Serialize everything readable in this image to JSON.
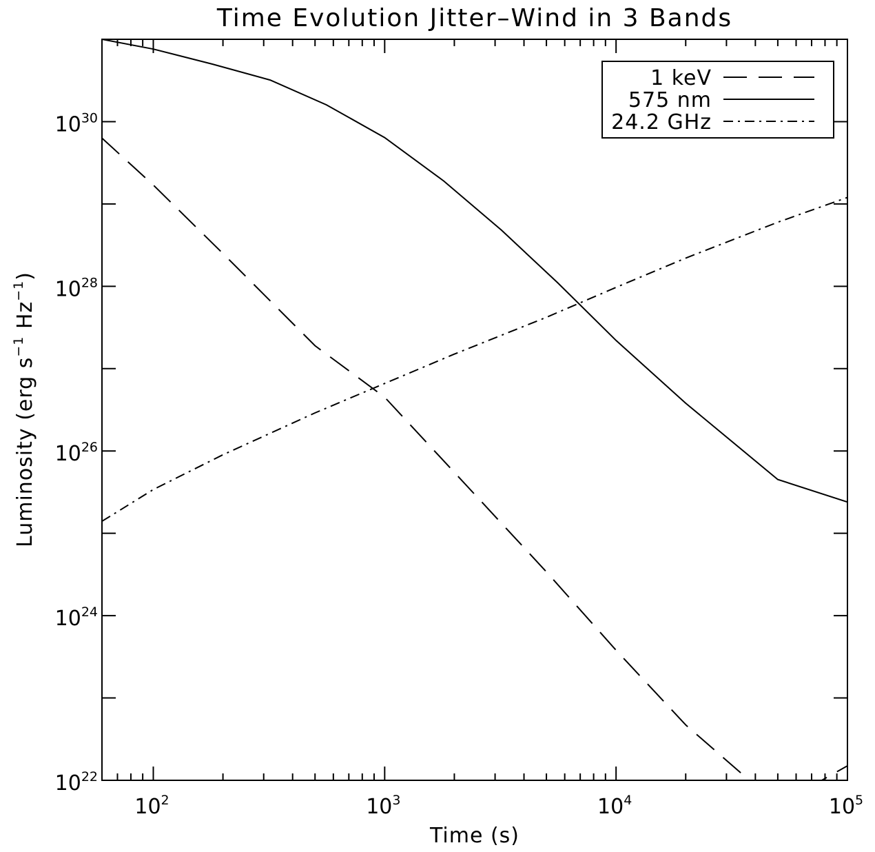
{
  "chart_data": {
    "type": "line",
    "title": "Time Evolution Jitter–Wind in 3 Bands",
    "xlabel": "Time (s)",
    "ylabel": {
      "text": "Luminosity (erg s",
      "sup1": "−1",
      "mid": " Hz",
      "sup2": "−1",
      "end": ")"
    },
    "x_scale": "log",
    "y_scale": "log",
    "xlim": [
      60,
      100000
    ],
    "ylim": [
      1e+22,
      1e+31
    ],
    "x_ticks": [
      {
        "value": 100,
        "base": "10",
        "exp": "2"
      },
      {
        "value": 1000,
        "base": "10",
        "exp": "3"
      },
      {
        "value": 10000,
        "base": "10",
        "exp": "4"
      },
      {
        "value": 100000,
        "base": "10",
        "exp": "5"
      }
    ],
    "y_ticks": [
      {
        "value": 1e+22,
        "base": "10",
        "exp": "22"
      },
      {
        "value": 1e+24,
        "base": "10",
        "exp": "24"
      },
      {
        "value": 1e+26,
        "base": "10",
        "exp": "26"
      },
      {
        "value": 1e+28,
        "base": "10",
        "exp": "28"
      },
      {
        "value": 1e+30,
        "base": "10",
        "exp": "30"
      }
    ],
    "y_minor_ticks": [
      1e+23,
      1e+25,
      1e+27,
      1e+29
    ],
    "grid": false,
    "legend": {
      "placement": "top-right",
      "boxed": true
    },
    "series": [
      {
        "name": "1 keV",
        "style": "dashed",
        "x": [
          60,
          100,
          200,
          500,
          1000,
          2000,
          5000,
          10000,
          20000,
          50000,
          100000
        ],
        "y": [
          6.3e+29,
          1.7e+29,
          2.5e+28,
          1.9e+27,
          4.5e+26,
          5.5e+25,
          3.4e+24,
          3.8e+23,
          4.7e+22,
          5e+21,
          1.5e+22
        ]
      },
      {
        "name": "575 nm",
        "style": "solid",
        "x": [
          60,
          100,
          180,
          320,
          560,
          1000,
          1800,
          3200,
          5600,
          10000,
          20000,
          50000,
          100000
        ],
        "y": [
          1e+31,
          7.6e+30,
          5e+30,
          3.2e+30,
          1.6e+30,
          6.4e+29,
          1.9e+29,
          4.8e+28,
          1.1e+28,
          2.2e+27,
          3.8e+26,
          4.5e+25,
          2.4e+25
        ]
      },
      {
        "name": "24.2 GHz",
        "style": "dash-dot",
        "x": [
          60,
          100,
          200,
          500,
          1000,
          2000,
          5000,
          10000,
          20000,
          50000,
          100000
        ],
        "y": [
          1.4e+25,
          3.4e+25,
          9e+25,
          2.9e+26,
          6.6e+26,
          1.5e+27,
          4.2e+27,
          9.7e+27,
          2.2e+28,
          6e+28,
          1.2e+29
        ]
      }
    ]
  }
}
